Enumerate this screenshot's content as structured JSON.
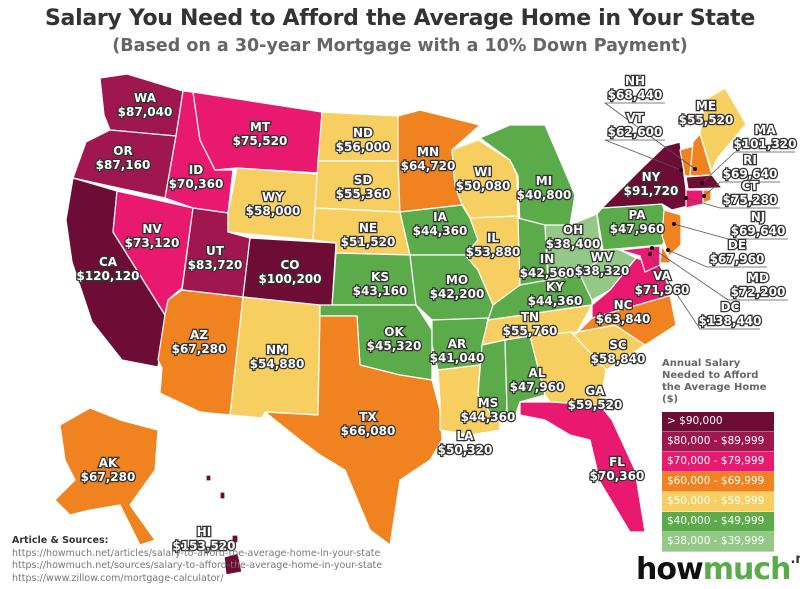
{
  "header": {
    "title": "Salary You Need to Afford the Average Home in Your State",
    "subtitle": "(Based on a 30-year Mortgage with a 10% Down Payment)"
  },
  "legend": {
    "title_lines": [
      "Annual Salary",
      "Needed to Afford",
      "the Average Home ($)"
    ],
    "tiers": [
      {
        "label": "> $90,000",
        "color": "#6d0d35"
      },
      {
        "label": "$80,000 - $89,999",
        "color": "#a0174f"
      },
      {
        "label": "$70,000 - $79,999",
        "color": "#e8196e"
      },
      {
        "label": "$60,000 - $69,999",
        "color": "#f0821f"
      },
      {
        "label": "$50,000 - $59,999",
        "color": "#f7cf60"
      },
      {
        "label": "$40,000 - $49,999",
        "color": "#5bab4b"
      },
      {
        "label": "$38,000 - $39,999",
        "color": "#93c887"
      }
    ]
  },
  "states": [
    {
      "abbr": "WA",
      "salary": "$87,040",
      "tier": 1
    },
    {
      "abbr": "OR",
      "salary": "$87,160",
      "tier": 1
    },
    {
      "abbr": "CA",
      "salary": "$120,120",
      "tier": 0
    },
    {
      "abbr": "ID",
      "salary": "$70,360",
      "tier": 2
    },
    {
      "abbr": "NV",
      "salary": "$73,120",
      "tier": 2
    },
    {
      "abbr": "UT",
      "salary": "$83,720",
      "tier": 1
    },
    {
      "abbr": "AZ",
      "salary": "$67,280",
      "tier": 3
    },
    {
      "abbr": "MT",
      "salary": "$75,520",
      "tier": 2
    },
    {
      "abbr": "WY",
      "salary": "$58,000",
      "tier": 4
    },
    {
      "abbr": "CO",
      "salary": "$100,200",
      "tier": 0
    },
    {
      "abbr": "NM",
      "salary": "$54,880",
      "tier": 4
    },
    {
      "abbr": "ND",
      "salary": "$56,000",
      "tier": 4
    },
    {
      "abbr": "SD",
      "salary": "$55,360",
      "tier": 4
    },
    {
      "abbr": "NE",
      "salary": "$51,520",
      "tier": 4
    },
    {
      "abbr": "KS",
      "salary": "$43,160",
      "tier": 5
    },
    {
      "abbr": "OK",
      "salary": "$45,320",
      "tier": 5
    },
    {
      "abbr": "TX",
      "salary": "$66,080",
      "tier": 3
    },
    {
      "abbr": "MN",
      "salary": "$64,720",
      "tier": 3
    },
    {
      "abbr": "IA",
      "salary": "$44,360",
      "tier": 5
    },
    {
      "abbr": "MO",
      "salary": "$42,200",
      "tier": 5
    },
    {
      "abbr": "AR",
      "salary": "$41,040",
      "tier": 5
    },
    {
      "abbr": "LA",
      "salary": "$50,320",
      "tier": 4
    },
    {
      "abbr": "WI",
      "salary": "$50,080",
      "tier": 4
    },
    {
      "abbr": "IL",
      "salary": "$53,880",
      "tier": 4
    },
    {
      "abbr": "MI",
      "salary": "$40,800",
      "tier": 5
    },
    {
      "abbr": "IN",
      "salary": "$42,560",
      "tier": 5
    },
    {
      "abbr": "OH",
      "salary": "$38,400",
      "tier": 6
    },
    {
      "abbr": "KY",
      "salary": "$44,360",
      "tier": 5
    },
    {
      "abbr": "TN",
      "salary": "$55,760",
      "tier": 4
    },
    {
      "abbr": "MS",
      "salary": "$44,360",
      "tier": 5
    },
    {
      "abbr": "AL",
      "salary": "$47,960",
      "tier": 5
    },
    {
      "abbr": "GA",
      "salary": "$59,520",
      "tier": 4
    },
    {
      "abbr": "FL",
      "salary": "$70,360",
      "tier": 2
    },
    {
      "abbr": "SC",
      "salary": "$58,840",
      "tier": 4
    },
    {
      "abbr": "NC",
      "salary": "$63,840",
      "tier": 3
    },
    {
      "abbr": "VA",
      "salary": "$71,960",
      "tier": 2
    },
    {
      "abbr": "WV",
      "salary": "$38,320",
      "tier": 6
    },
    {
      "abbr": "PA",
      "salary": "$47,960",
      "tier": 5
    },
    {
      "abbr": "NY",
      "salary": "$91,720",
      "tier": 0
    },
    {
      "abbr": "VT",
      "salary": "$62,600",
      "tier": 3
    },
    {
      "abbr": "NH",
      "salary": "$68,440",
      "tier": 3
    },
    {
      "abbr": "ME",
      "salary": "$55,520",
      "tier": 4
    },
    {
      "abbr": "MA",
      "salary": "$101,320",
      "tier": 0
    },
    {
      "abbr": "RI",
      "salary": "$69,640",
      "tier": 3
    },
    {
      "abbr": "CT",
      "salary": "$75,280",
      "tier": 2
    },
    {
      "abbr": "NJ",
      "salary": "$69,640",
      "tier": 3
    },
    {
      "abbr": "DE",
      "salary": "$67,960",
      "tier": 3
    },
    {
      "abbr": "MD",
      "salary": "$72,200",
      "tier": 2
    },
    {
      "abbr": "DC",
      "salary": "$138,440",
      "tier": 0
    },
    {
      "abbr": "AK",
      "salary": "$67,280",
      "tier": 3
    },
    {
      "abbr": "HI",
      "salary": "$153,520",
      "tier": 0
    }
  ],
  "sources": {
    "title": "Article & Sources:",
    "links": [
      "https://howmuch.net/articles/salary-to-afford-the-average-home-in-your-state",
      "https://howmuch.net/sources/salary-to-afford-the-average-home-in-your-state",
      "https://www.zillow.com/mortgage-calculator/"
    ]
  },
  "logo": {
    "part1": "how",
    "part2": "much",
    "suffix": ".net"
  }
}
